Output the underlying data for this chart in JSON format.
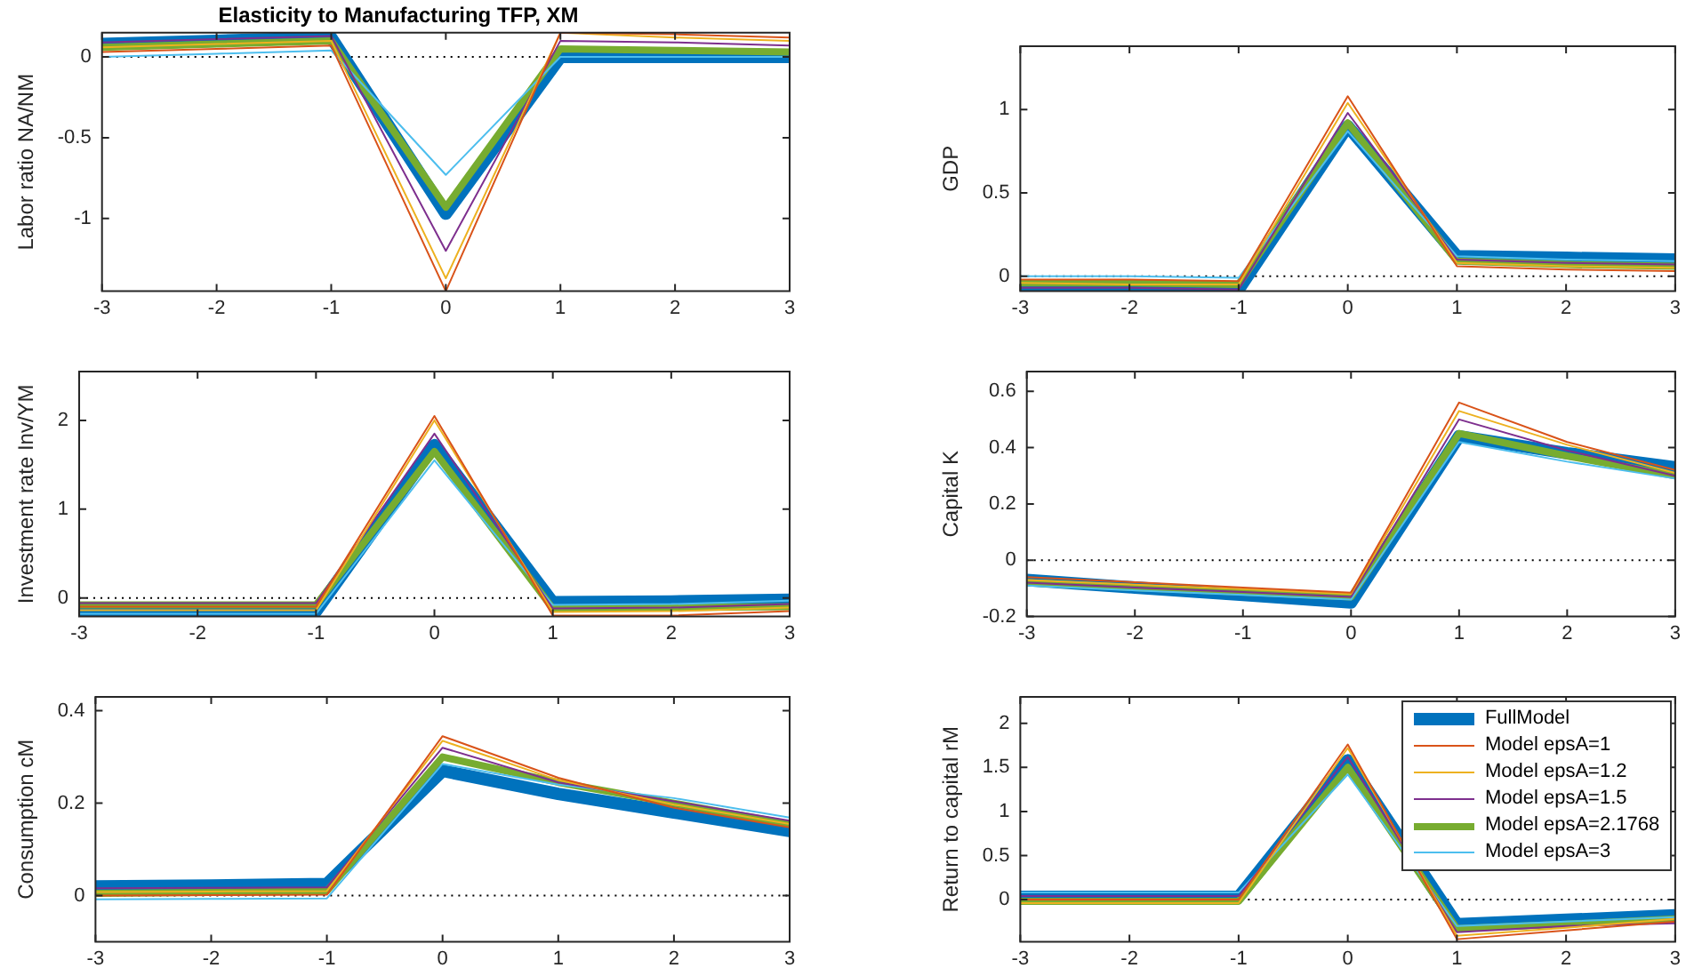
{
  "chart_data": [
    {
      "type": "line",
      "title": "Elasticity to Manufacturing TFP, XM",
      "ylabel": "Labor ratio NA/NM",
      "x": [
        -3,
        -2,
        -1,
        0,
        1,
        2,
        3
      ],
      "xlim": [
        -3,
        3
      ],
      "xticks": [
        -3,
        -2,
        -1,
        0,
        1,
        2,
        3
      ],
      "ylim": [
        -1.45,
        0.15
      ],
      "yticks": [
        -1,
        -0.5,
        0
      ],
      "grid": false,
      "legend": false,
      "ref_lines": [
        {
          "axis": "y",
          "value": 0,
          "color": "#000000",
          "line_style": "dotted"
        }
      ],
      "series": [
        {
          "color": "#0072bd",
          "values": [
            0.08,
            0.1,
            0.12,
            -0.97,
            0.0,
            0.0,
            0.0
          ]
        },
        {
          "color": "#d95319",
          "values": [
            0.03,
            0.05,
            0.07,
            -1.45,
            0.15,
            0.14,
            0.12
          ]
        },
        {
          "color": "#edb120",
          "values": [
            0.06,
            0.08,
            0.1,
            -1.37,
            0.15,
            0.12,
            0.1
          ]
        },
        {
          "color": "#7e2f8e",
          "values": [
            0.09,
            0.11,
            0.13,
            -1.2,
            0.1,
            0.09,
            0.07
          ]
        },
        {
          "color": "#77ac30",
          "values": [
            0.06,
            0.08,
            0.1,
            -0.93,
            0.05,
            0.04,
            0.03
          ]
        },
        {
          "color": "#4dbeee",
          "values": [
            0.0,
            0.02,
            0.04,
            -0.73,
            0.0,
            0.0,
            0.0
          ]
        }
      ]
    },
    {
      "type": "line",
      "ylabel": "GDP",
      "x": [
        -3,
        -2,
        -1,
        0,
        1,
        2,
        3
      ],
      "xlim": [
        -3,
        3
      ],
      "xticks": [
        -3,
        -2,
        -1,
        0,
        1,
        2,
        3
      ],
      "ylim": [
        -0.09,
        1.38
      ],
      "yticks": [
        0,
        0.5,
        1
      ],
      "grid": false,
      "legend": false,
      "ref_lines": [
        {
          "axis": "y",
          "value": 0,
          "color": "#000000",
          "line_style": "dotted"
        }
      ],
      "series": [
        {
          "color": "#0072bd",
          "values": [
            -0.06,
            -0.07,
            -0.08,
            0.9,
            0.12,
            0.11,
            0.1
          ]
        },
        {
          "color": "#d95319",
          "values": [
            -0.02,
            -0.02,
            -0.03,
            1.08,
            0.06,
            0.04,
            0.03
          ]
        },
        {
          "color": "#edb120",
          "values": [
            -0.04,
            -0.05,
            -0.05,
            1.04,
            0.08,
            0.06,
            0.05
          ]
        },
        {
          "color": "#7e2f8e",
          "values": [
            -0.07,
            -0.07,
            -0.08,
            0.98,
            0.1,
            0.08,
            0.07
          ]
        },
        {
          "color": "#77ac30",
          "values": [
            -0.04,
            -0.04,
            -0.05,
            0.92,
            0.09,
            0.07,
            0.06
          ]
        },
        {
          "color": "#4dbeee",
          "values": [
            0.0,
            0.0,
            -0.01,
            0.87,
            0.12,
            0.1,
            0.09
          ]
        }
      ]
    },
    {
      "type": "line",
      "ylabel": "Investment rate Inv/YM",
      "x": [
        -3,
        -2,
        -1,
        0,
        1,
        2,
        3
      ],
      "xlim": [
        -3,
        3
      ],
      "xticks": [
        -3,
        -2,
        -1,
        0,
        1,
        2,
        3
      ],
      "ylim": [
        -0.21,
        2.55
      ],
      "yticks": [
        0,
        1,
        2
      ],
      "grid": false,
      "legend": false,
      "ref_lines": [
        {
          "axis": "y",
          "value": 0,
          "color": "#000000",
          "line_style": "dotted"
        }
      ],
      "series": [
        {
          "color": "#0072bd",
          "values": [
            -0.15,
            -0.15,
            -0.15,
            1.72,
            -0.05,
            -0.04,
            -0.02
          ]
        },
        {
          "color": "#d95319",
          "values": [
            -0.1,
            -0.1,
            -0.1,
            2.05,
            -0.2,
            -0.2,
            -0.15
          ]
        },
        {
          "color": "#edb120",
          "values": [
            -0.14,
            -0.14,
            -0.14,
            2.0,
            -0.16,
            -0.15,
            -0.11
          ]
        },
        {
          "color": "#7e2f8e",
          "values": [
            -0.06,
            -0.06,
            -0.06,
            1.85,
            -0.12,
            -0.11,
            -0.07
          ]
        },
        {
          "color": "#77ac30",
          "values": [
            -0.08,
            -0.08,
            -0.08,
            1.65,
            -0.12,
            -0.11,
            -0.1
          ]
        },
        {
          "color": "#4dbeee",
          "values": [
            -0.18,
            -0.18,
            -0.18,
            1.55,
            -0.08,
            -0.07,
            -0.03
          ]
        }
      ]
    },
    {
      "type": "line",
      "ylabel": "Capital K",
      "x": [
        -3,
        -2,
        -1,
        0,
        1,
        2,
        3
      ],
      "xlim": [
        -3,
        3
      ],
      "xticks": [
        -3,
        -2,
        -1,
        0,
        1,
        2,
        3
      ],
      "ylim": [
        -0.2,
        0.67
      ],
      "yticks": [
        -0.2,
        0,
        0.2,
        0.4,
        0.6
      ],
      "grid": false,
      "legend": false,
      "ref_lines": [
        {
          "axis": "y",
          "value": 0,
          "color": "#000000",
          "line_style": "dotted"
        }
      ],
      "series": [
        {
          "color": "#0072bd",
          "values": [
            -0.07,
            -0.097,
            -0.123,
            -0.15,
            0.44,
            0.38,
            0.33
          ]
        },
        {
          "color": "#d95319",
          "values": [
            -0.06,
            -0.078,
            -0.097,
            -0.115,
            0.56,
            0.42,
            0.32
          ]
        },
        {
          "color": "#edb120",
          "values": [
            -0.07,
            -0.087,
            -0.103,
            -0.12,
            0.53,
            0.41,
            0.31
          ]
        },
        {
          "color": "#7e2f8e",
          "values": [
            -0.08,
            -0.097,
            -0.113,
            -0.13,
            0.5,
            0.39,
            0.3
          ]
        },
        {
          "color": "#77ac30",
          "values": [
            -0.08,
            -0.097,
            -0.113,
            -0.13,
            0.45,
            0.37,
            0.3
          ]
        },
        {
          "color": "#4dbeee",
          "values": [
            -0.09,
            -0.107,
            -0.123,
            -0.14,
            0.42,
            0.35,
            0.29
          ]
        }
      ]
    },
    {
      "type": "line",
      "ylabel": "Consumption cM",
      "x": [
        -3,
        -2,
        -1,
        0,
        1,
        2,
        3
      ],
      "xlim": [
        -3,
        3
      ],
      "xticks": [
        -3,
        -2,
        -1,
        0,
        1,
        2,
        3
      ],
      "ylim": [
        -0.1,
        0.43
      ],
      "yticks": [
        0,
        0.2,
        0.4
      ],
      "grid": false,
      "legend": false,
      "ref_lines": [
        {
          "axis": "y",
          "value": 0,
          "color": "#000000",
          "line_style": "dotted"
        }
      ],
      "series": [
        {
          "color": "#0072bd",
          "values": [
            0.02,
            0.022,
            0.025,
            0.27,
            0.22,
            0.18,
            0.14
          ]
        },
        {
          "color": "#d95319",
          "values": [
            0.0,
            0.001,
            0.002,
            0.345,
            0.255,
            0.19,
            0.148
          ]
        },
        {
          "color": "#edb120",
          "values": [
            0.008,
            0.009,
            0.01,
            0.335,
            0.25,
            0.197,
            0.155
          ]
        },
        {
          "color": "#7e2f8e",
          "values": [
            0.016,
            0.017,
            0.018,
            0.32,
            0.245,
            0.204,
            0.162
          ]
        },
        {
          "color": "#77ac30",
          "values": [
            0.005,
            0.007,
            0.01,
            0.3,
            0.245,
            0.2,
            0.155
          ]
        },
        {
          "color": "#4dbeee",
          "values": [
            -0.008,
            -0.007,
            -0.006,
            0.285,
            0.24,
            0.211,
            0.169
          ]
        }
      ]
    },
    {
      "type": "line",
      "ylabel": "Return to capital rM",
      "x": [
        -3,
        -2,
        -1,
        0,
        1,
        2,
        3
      ],
      "xlim": [
        -3,
        3
      ],
      "xticks": [
        -3,
        -2,
        -1,
        0,
        1,
        2,
        3
      ],
      "ylim": [
        -0.48,
        2.3
      ],
      "yticks": [
        0,
        0.5,
        1,
        1.5,
        2
      ],
      "grid": false,
      "legend": "top right",
      "ref_lines": [
        {
          "axis": "y",
          "value": 0,
          "color": "#000000",
          "line_style": "dotted"
        }
      ],
      "series": [
        {
          "name": "FullModel",
          "color": "#0072bd",
          "values": [
            0.03,
            0.03,
            0.03,
            1.58,
            -0.28,
            -0.23,
            -0.18
          ]
        },
        {
          "name": "Model epsA=1",
          "color": "#d95319",
          "values": [
            0,
            0,
            0,
            1.76,
            -0.45,
            -0.35,
            -0.25
          ]
        },
        {
          "name": "Model epsA=1.2",
          "color": "#edb120",
          "values": [
            -0.04,
            -0.04,
            -0.04,
            1.72,
            -0.41,
            -0.32,
            -0.22
          ]
        },
        {
          "name": "Model epsA=1.5",
          "color": "#7e2f8e",
          "values": [
            0.04,
            0.04,
            0.04,
            1.62,
            -0.37,
            -0.3,
            -0.27
          ]
        },
        {
          "name": "Model epsA=2.1768",
          "color": "#77ac30",
          "values": [
            -0.02,
            -0.02,
            -0.02,
            1.5,
            -0.33,
            -0.28,
            -0.22
          ]
        },
        {
          "name": "Model epsA=3",
          "color": "#4dbeee",
          "values": [
            0.08,
            0.08,
            0.08,
            1.42,
            -0.3,
            -0.25,
            -0.2
          ]
        }
      ]
    }
  ]
}
